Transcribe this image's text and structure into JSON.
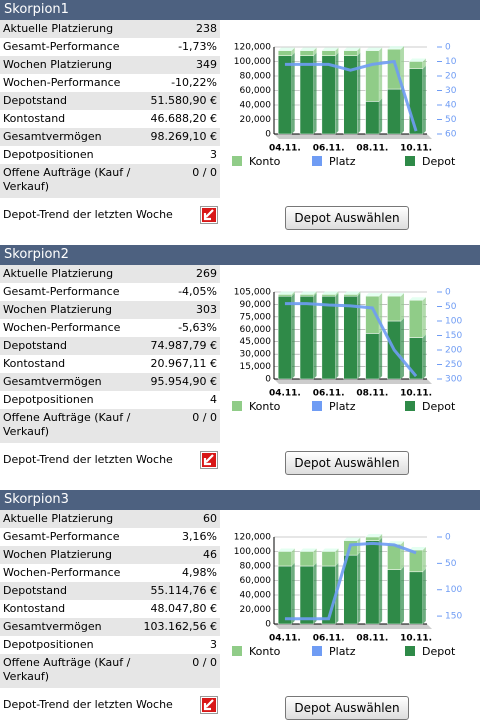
{
  "panels": [
    {
      "title": "Skorpion1",
      "rows": [
        [
          "Aktuelle Platzierung",
          "238"
        ],
        [
          "Gesamt-Performance",
          "-1,73%"
        ],
        [
          "Wochen Platzierung",
          "349"
        ],
        [
          "Wochen-Performance",
          "-10,22%"
        ],
        [
          "Depotstand",
          "51.580,90 €"
        ],
        [
          "Kontostand",
          "46.688,20 €"
        ],
        [
          "Gesamtvermögen",
          "98.269,10 €"
        ],
        [
          "Depotpositionen",
          "3"
        ],
        [
          "Offene Aufträge (Kauf / Verkauf)",
          "0 / 0"
        ]
      ],
      "trend_label": "Depot-Trend der letzten Woche",
      "button": "Depot Auswählen",
      "chart_data": {
        "type": "bar",
        "categories": [
          "04.11.",
          null,
          "06.11.",
          null,
          "08.11.",
          null,
          "10.11."
        ],
        "series": [
          {
            "name": "Konto",
            "color": "#90cc88",
            "values": [
              7000,
              7000,
              7000,
              7000,
              70000,
              55000,
              10000
            ]
          },
          {
            "name": "Platz",
            "color": "#6f9cf4",
            "axis": "y2",
            "values": [
              12,
              12,
              12,
              16,
              12,
              10,
              58
            ]
          },
          {
            "name": "Depot",
            "color": "#2f8a48",
            "values": [
              108000,
              108000,
              108000,
              108000,
              45000,
              62000,
              90000
            ]
          }
        ],
        "ylim": [
          0,
          120000
        ],
        "yticks": [
          0,
          {
            "value": 20000,
            "label": "20,000"
          },
          {
            "value": 40000,
            "label": "40,000"
          },
          {
            "value": 60000,
            "label": "60,000"
          },
          {
            "value": 80000,
            "label": "80,000"
          },
          {
            "value": 100000,
            "label": "100,000"
          },
          {
            "value": 120000,
            "label": "120,000"
          }
        ],
        "y2lim": [
          0,
          60
        ],
        "y2ticks": [
          0,
          10,
          20,
          30,
          40,
          50,
          60
        ],
        "y2_inverted": true,
        "stacked": true
      }
    },
    {
      "title": "Skorpion2",
      "rows": [
        [
          "Aktuelle Platzierung",
          "269"
        ],
        [
          "Gesamt-Performance",
          "-4,05%"
        ],
        [
          "Wochen Platzierung",
          "303"
        ],
        [
          "Wochen-Performance",
          "-5,63%"
        ],
        [
          "Depotstand",
          "74.987,79 €"
        ],
        [
          "Kontostand",
          "20.967,11 €"
        ],
        [
          "Gesamtvermögen",
          "95.954,90 €"
        ],
        [
          "Depotpositionen",
          "4"
        ],
        [
          "Offene Aufträge (Kauf / Verkauf)",
          "0 / 0"
        ]
      ],
      "trend_label": "Depot-Trend der letzten Woche",
      "button": "Depot Auswählen",
      "chart_data": {
        "type": "bar",
        "categories": [
          "04.11.",
          null,
          "06.11.",
          null,
          "08.11.",
          null,
          "10.11."
        ],
        "series": [
          {
            "name": "Konto",
            "color": "#90cc88",
            "values": [
              2000,
              2000,
              2000,
              2000,
              45000,
              30000,
              45000
            ]
          },
          {
            "name": "Platz",
            "color": "#6f9cf4",
            "axis": "y2",
            "values": [
              40,
              40,
              45,
              48,
              55,
              200,
              290
            ]
          },
          {
            "name": "Depot",
            "color": "#2f8a48",
            "values": [
              100000,
              100000,
              100000,
              100000,
              55000,
              70000,
              50000
            ]
          }
        ],
        "ylim": [
          0,
          105000
        ],
        "yticks": [
          0,
          {
            "value": 15000,
            "label": "15,000"
          },
          {
            "value": 30000,
            "label": "30,000"
          },
          {
            "value": 45000,
            "label": "45,000"
          },
          {
            "value": 60000,
            "label": "60,000"
          },
          {
            "value": 75000,
            "label": "75,000"
          },
          {
            "value": 90000,
            "label": "90,000"
          },
          {
            "value": 105000,
            "label": "105,000"
          }
        ],
        "y2lim": [
          0,
          300
        ],
        "y2ticks": [
          0,
          50,
          100,
          150,
          200,
          250,
          300
        ],
        "y2_inverted": true,
        "stacked": true
      }
    },
    {
      "title": "Skorpion3",
      "rows": [
        [
          "Aktuelle Platzierung",
          "60"
        ],
        [
          "Gesamt-Performance",
          "3,16%"
        ],
        [
          "Wochen Platzierung",
          "46"
        ],
        [
          "Wochen-Performance",
          "4,98%"
        ],
        [
          "Depotstand",
          "55.114,76 €"
        ],
        [
          "Kontostand",
          "48.047,80 €"
        ],
        [
          "Gesamtvermögen",
          "103.162,56 €"
        ],
        [
          "Depotpositionen",
          "3"
        ],
        [
          "Offene Aufträge (Kauf / Verkauf)",
          "0 / 0"
        ]
      ],
      "trend_label": "Depot-Trend der letzten Woche",
      "button": "Depot Auswählen",
      "chart_data": {
        "type": "bar",
        "categories": [
          "04.11.",
          null,
          "06.11.",
          null,
          "08.11.",
          null,
          "10.11."
        ],
        "series": [
          {
            "name": "Konto",
            "color": "#90cc88",
            "values": [
              20000,
              20000,
              20000,
              20000,
              5000,
              35000,
              30000
            ]
          },
          {
            "name": "Platz",
            "color": "#6f9cf4",
            "axis": "y2",
            "values": [
              155,
              155,
              155,
              15,
              12,
              15,
              30
            ]
          },
          {
            "name": "Depot",
            "color": "#2f8a48",
            "values": [
              80000,
              80000,
              80000,
              95000,
              115000,
              75000,
              72000
            ]
          }
        ],
        "ylim": [
          0,
          120000
        ],
        "yticks": [
          0,
          {
            "value": 20000,
            "label": "20,000"
          },
          {
            "value": 40000,
            "label": "40,000"
          },
          {
            "value": 60000,
            "label": "60,000"
          },
          {
            "value": 80000,
            "label": "80,000"
          },
          {
            "value": 100000,
            "label": "100,000"
          },
          {
            "value": 120000,
            "label": "120,000"
          }
        ],
        "y2lim": [
          0,
          165
        ],
        "y2ticks": [
          0,
          50,
          100,
          150
        ],
        "y2_inverted": true,
        "stacked": true
      }
    }
  ]
}
